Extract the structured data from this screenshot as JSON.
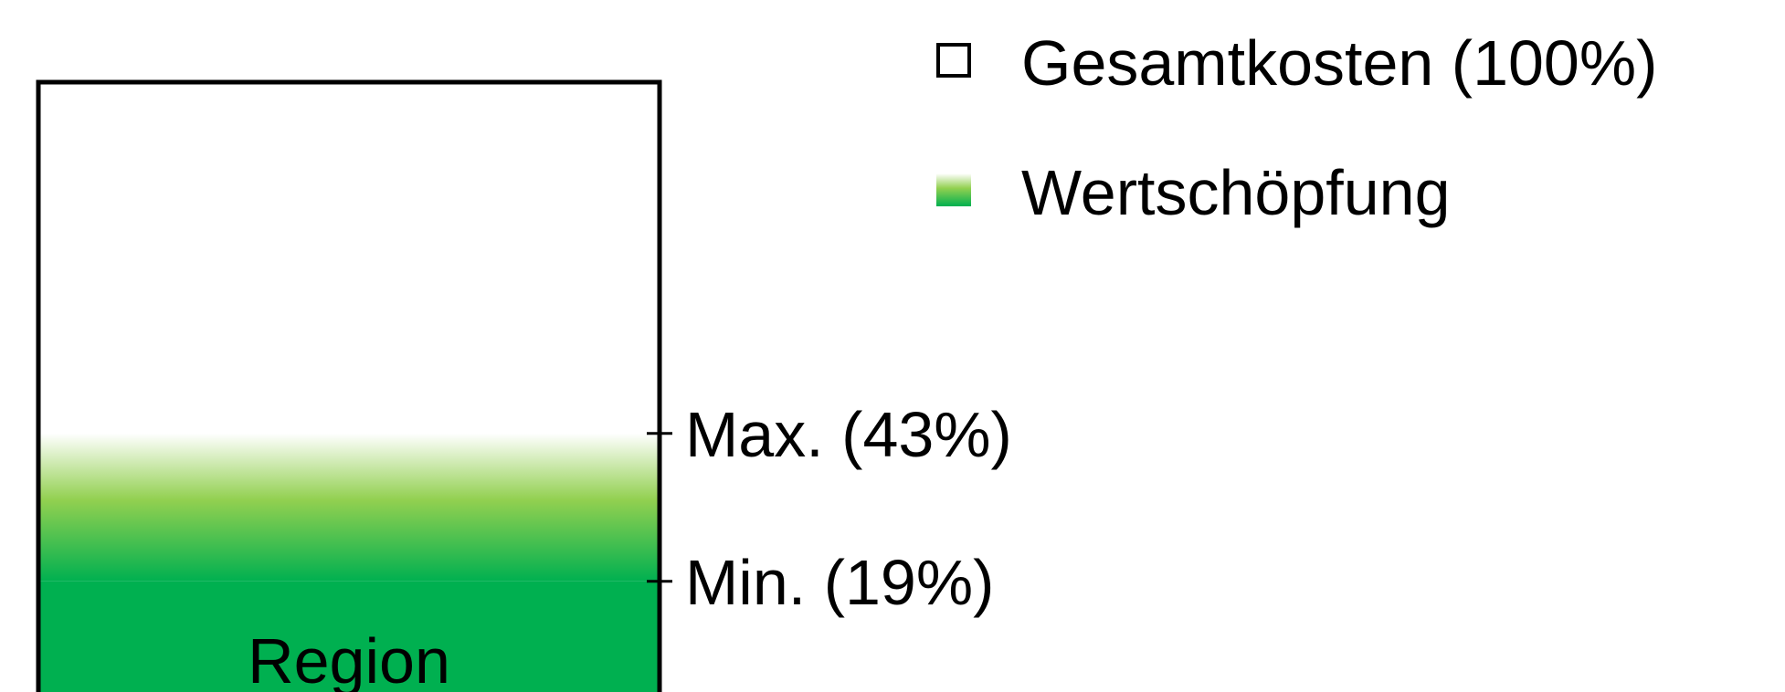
{
  "chart_data": {
    "type": "range-bar",
    "categories": [
      "Region"
    ],
    "total": {
      "name": "Gesamtkosten (100%)",
      "value": 100,
      "color": "#ffffff"
    },
    "range": {
      "name": "Wertschöpfung",
      "min": 19,
      "max": 43,
      "min_label": "Min. (19%)",
      "max_label": "Max. (43%)",
      "color": "#00b050",
      "mid_color": "#92d050"
    }
  }
}
